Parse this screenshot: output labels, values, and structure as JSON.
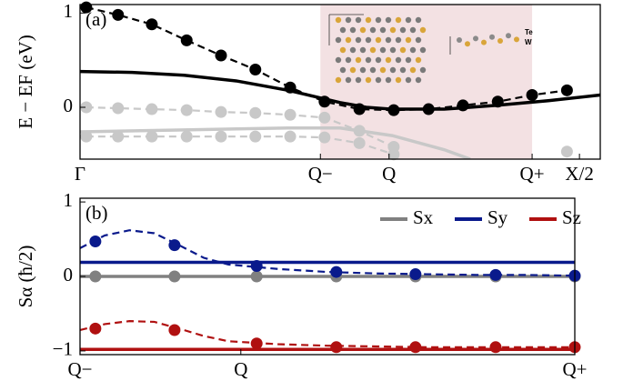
{
  "chart_data": [
    {
      "type": "line",
      "panel_label": "(a)",
      "ylabel": "E − EF (eV)",
      "xlim": [
        0,
        1
      ],
      "ylim": [
        -0.55,
        1.09
      ],
      "xticks": [
        {
          "value": 0,
          "label": "Γ"
        },
        {
          "value": 0.462,
          "label": "Q−"
        },
        {
          "value": 0.594,
          "label": "Q"
        },
        {
          "value": 0.869,
          "label": "Q+"
        },
        {
          "value": 0.96,
          "label": "X/2"
        }
      ],
      "yticks": [
        0,
        1
      ],
      "shade": [
        0.462,
        0.869
      ],
      "shade_color": "#f3e1e3",
      "inset_labels": [
        "Te",
        "W"
      ],
      "series": [
        {
          "color": "#c8c8c8",
          "style": "solid",
          "x": [
            0,
            0.2,
            0.4,
            0.5,
            0.6,
            0.7,
            0.75
          ],
          "values": [
            -0.26,
            -0.24,
            -0.22,
            -0.22,
            -0.3,
            -0.45,
            -0.55
          ]
        },
        {
          "color": "#c8c8c8",
          "style": "dashed",
          "marker": true,
          "x": [
            0.012,
            0.073,
            0.138,
            0.205,
            0.271,
            0.337,
            0.404,
            0.47,
            0.537,
            0.603,
            0.67,
            0.736,
            0.803,
            0.869,
            0.936
          ],
          "values": [
            0,
            -0.01,
            -0.02,
            -0.03,
            -0.05,
            -0.06,
            -0.08,
            -0.11,
            -0.25,
            -0.42,
            null,
            null,
            null,
            null,
            -0.47
          ]
        },
        {
          "color": "#c8c8c8",
          "style": "dashed",
          "marker": true,
          "x": [
            0.012,
            0.073,
            0.138,
            0.205,
            0.271,
            0.337,
            0.404,
            0.47,
            0.537,
            0.603
          ],
          "values": [
            -0.31,
            -0.31,
            -0.31,
            -0.31,
            -0.31,
            -0.31,
            -0.31,
            -0.32,
            -0.38,
            -0.5
          ]
        },
        {
          "color": "#000000",
          "style": "solid",
          "x": [
            0,
            0.1,
            0.2,
            0.3,
            0.4,
            0.5,
            0.55,
            0.6,
            0.7,
            0.8,
            0.9,
            1
          ],
          "values": [
            0.38,
            0.37,
            0.34,
            0.28,
            0.18,
            0.05,
            0.0,
            -0.02,
            -0.02,
            0.02,
            0.07,
            0.13
          ]
        },
        {
          "color": "#000000",
          "style": "dashed",
          "marker": true,
          "x": [
            0.012,
            0.073,
            0.138,
            0.205,
            0.271,
            0.337,
            0.404,
            0.47,
            0.537,
            0.603,
            0.67,
            0.736,
            0.803,
            0.869,
            0.936
          ],
          "values": [
            1.06,
            0.98,
            0.88,
            0.71,
            0.55,
            0.4,
            0.21,
            0.06,
            -0.02,
            -0.03,
            -0.02,
            0.02,
            0.06,
            0.13,
            0.18
          ]
        }
      ]
    },
    {
      "type": "line",
      "panel_label": "(b)",
      "ylabel": "Sα (ħ/2)",
      "xlim": [
        0,
        1
      ],
      "ylim": [
        -1.05,
        1.05
      ],
      "xticks": [
        {
          "value": 0,
          "label": "Q−"
        },
        {
          "value": 0.325,
          "label": "Q"
        },
        {
          "value": 1,
          "label": "Q+"
        }
      ],
      "yticks": [
        {
          "value": -1,
          "label": "−1"
        },
        0,
        1
      ],
      "series": [
        {
          "name": "Sx",
          "color": "#808080",
          "style": "solid",
          "x": [
            0,
            1
          ],
          "values": [
            0,
            0
          ]
        },
        {
          "color": "#808080",
          "style": "dashed",
          "marker": true,
          "x": [
            0.031,
            0.191,
            0.357,
            0.518,
            0.678,
            0.84,
            1.0
          ],
          "values": [
            0,
            0,
            0,
            0,
            0,
            0,
            0
          ]
        },
        {
          "name": "Sy",
          "color": "#0a1a8c",
          "style": "solid",
          "x": [
            0,
            1
          ],
          "values": [
            0.19,
            0.19
          ]
        },
        {
          "color": "#0a1a8c",
          "style": "dashed",
          "x": [
            0,
            0.05,
            0.1,
            0.15,
            0.2,
            0.25,
            0.3,
            0.4,
            0.5,
            0.6,
            0.7,
            0.8,
            0.9,
            1
          ],
          "values": [
            0.38,
            0.55,
            0.62,
            0.58,
            0.42,
            0.25,
            0.16,
            0.1,
            0.06,
            0.04,
            0.03,
            0.02,
            0.02,
            0.01
          ]
        },
        {
          "color": "#0a1a8c",
          "style": "none",
          "marker": true,
          "x": [
            0.031,
            0.191,
            0.357,
            0.518,
            0.678,
            0.84,
            1.0
          ],
          "values": [
            0.47,
            0.42,
            0.14,
            0.06,
            0.03,
            0.02,
            0.01
          ]
        },
        {
          "name": "Sz",
          "color": "#b01010",
          "style": "solid",
          "x": [
            0,
            1
          ],
          "values": [
            -0.98,
            -0.98
          ]
        },
        {
          "color": "#b01010",
          "style": "dashed",
          "x": [
            0,
            0.05,
            0.1,
            0.15,
            0.2,
            0.25,
            0.3,
            0.4,
            0.5,
            0.6,
            0.7,
            0.8,
            0.9,
            1
          ],
          "values": [
            -0.72,
            -0.64,
            -0.6,
            -0.61,
            -0.7,
            -0.8,
            -0.87,
            -0.91,
            -0.93,
            -0.94,
            -0.95,
            -0.95,
            -0.95,
            -0.95
          ]
        },
        {
          "color": "#b01010",
          "style": "none",
          "marker": true,
          "x": [
            0.031,
            0.191,
            0.357,
            0.518,
            0.678,
            0.84,
            1.0
          ],
          "values": [
            -0.7,
            -0.72,
            -0.9,
            -0.95,
            -0.95,
            -0.95,
            -0.95
          ]
        }
      ]
    }
  ]
}
